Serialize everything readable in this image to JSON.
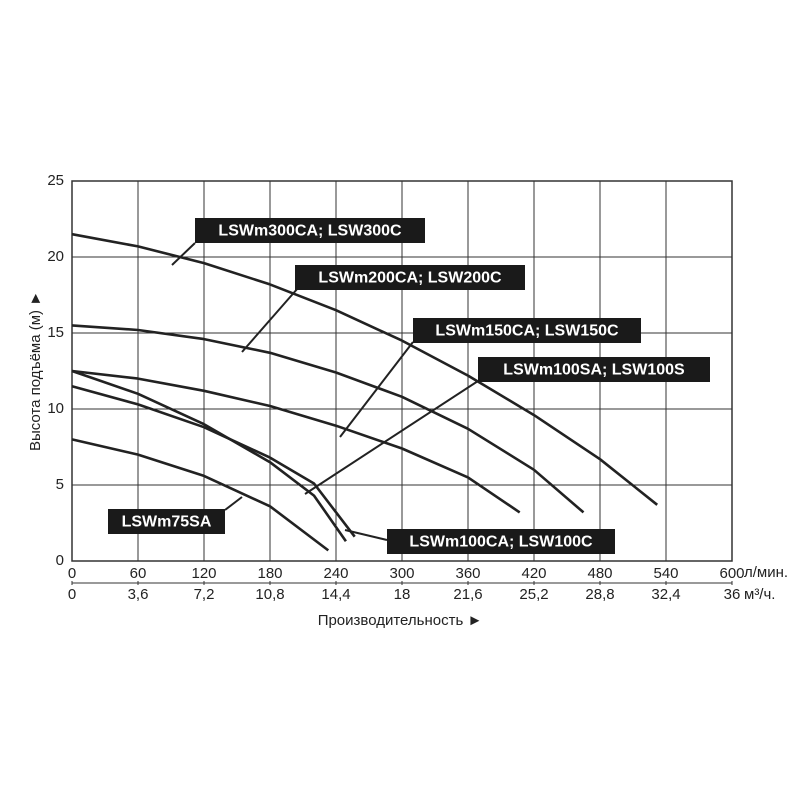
{
  "chart_data": {
    "type": "line",
    "x_label": "Производительность ►",
    "y_label": "Высота подъёма (м) ►",
    "x_unit": "л/мин.",
    "x2_unit": "м³/ч.",
    "xlim": [
      0,
      600
    ],
    "xticks": [
      0,
      60,
      120,
      180,
      240,
      300,
      360,
      420,
      480,
      540,
      600
    ],
    "x2lim": [
      0,
      36
    ],
    "x2ticks": [
      0,
      {
        "value": 3.6,
        "label": "3,6"
      },
      {
        "value": 7.2,
        "label": "7,2"
      },
      {
        "value": 10.8,
        "label": "10,8"
      },
      {
        "value": 14.4,
        "label": "14,4"
      },
      18,
      {
        "value": 21.6,
        "label": "21,6"
      },
      {
        "value": 25.2,
        "label": "25,2"
      },
      {
        "value": 28.8,
        "label": "28,8"
      },
      {
        "value": 32.4,
        "label": "32,4"
      },
      36
    ],
    "ylim": [
      0,
      25
    ],
    "yticks": [
      0,
      5,
      10,
      15,
      20,
      25
    ],
    "grid": true,
    "series": [
      {
        "name": "LSWm300CA; LSW300C",
        "color": "#222222",
        "x": [
          0,
          60,
          120,
          180,
          240,
          300,
          360,
          420,
          480,
          532
        ],
        "values": [
          21.5,
          20.7,
          19.6,
          18.2,
          16.5,
          14.5,
          12.2,
          9.6,
          6.7,
          3.7
        ]
      },
      {
        "name": "LSWm200CA; LSW200C",
        "color": "#222222",
        "x": [
          0,
          60,
          120,
          180,
          240,
          300,
          360,
          420,
          465
        ],
        "values": [
          15.5,
          15.2,
          14.6,
          13.7,
          12.4,
          10.8,
          8.7,
          6.0,
          3.2
        ]
      },
      {
        "name": "LSWm150CA; LSW150C",
        "color": "#222222",
        "x": [
          0,
          60,
          120,
          180,
          240,
          300,
          360,
          407
        ],
        "values": [
          12.5,
          12.0,
          11.2,
          10.2,
          8.9,
          7.4,
          5.5,
          3.2
        ]
      },
      {
        "name": "LSWm100SA; LSW100S",
        "color": "#222222",
        "x": [
          0,
          60,
          120,
          180,
          220,
          257
        ],
        "values": [
          11.5,
          10.3,
          8.8,
          6.8,
          5.1,
          1.6
        ]
      },
      {
        "name": "LSWm75SA",
        "color": "#222222",
        "x": [
          0,
          60,
          120,
          180,
          233
        ],
        "values": [
          8,
          7.0,
          5.6,
          3.6,
          0.7
        ]
      },
      {
        "name": "LSWm100CA; LSW100C",
        "color": "#222222",
        "x": [
          0,
          60,
          120,
          180,
          220,
          249
        ],
        "values": [
          12.5,
          11.0,
          9.0,
          6.5,
          4.3,
          1.3
        ]
      }
    ]
  }
}
